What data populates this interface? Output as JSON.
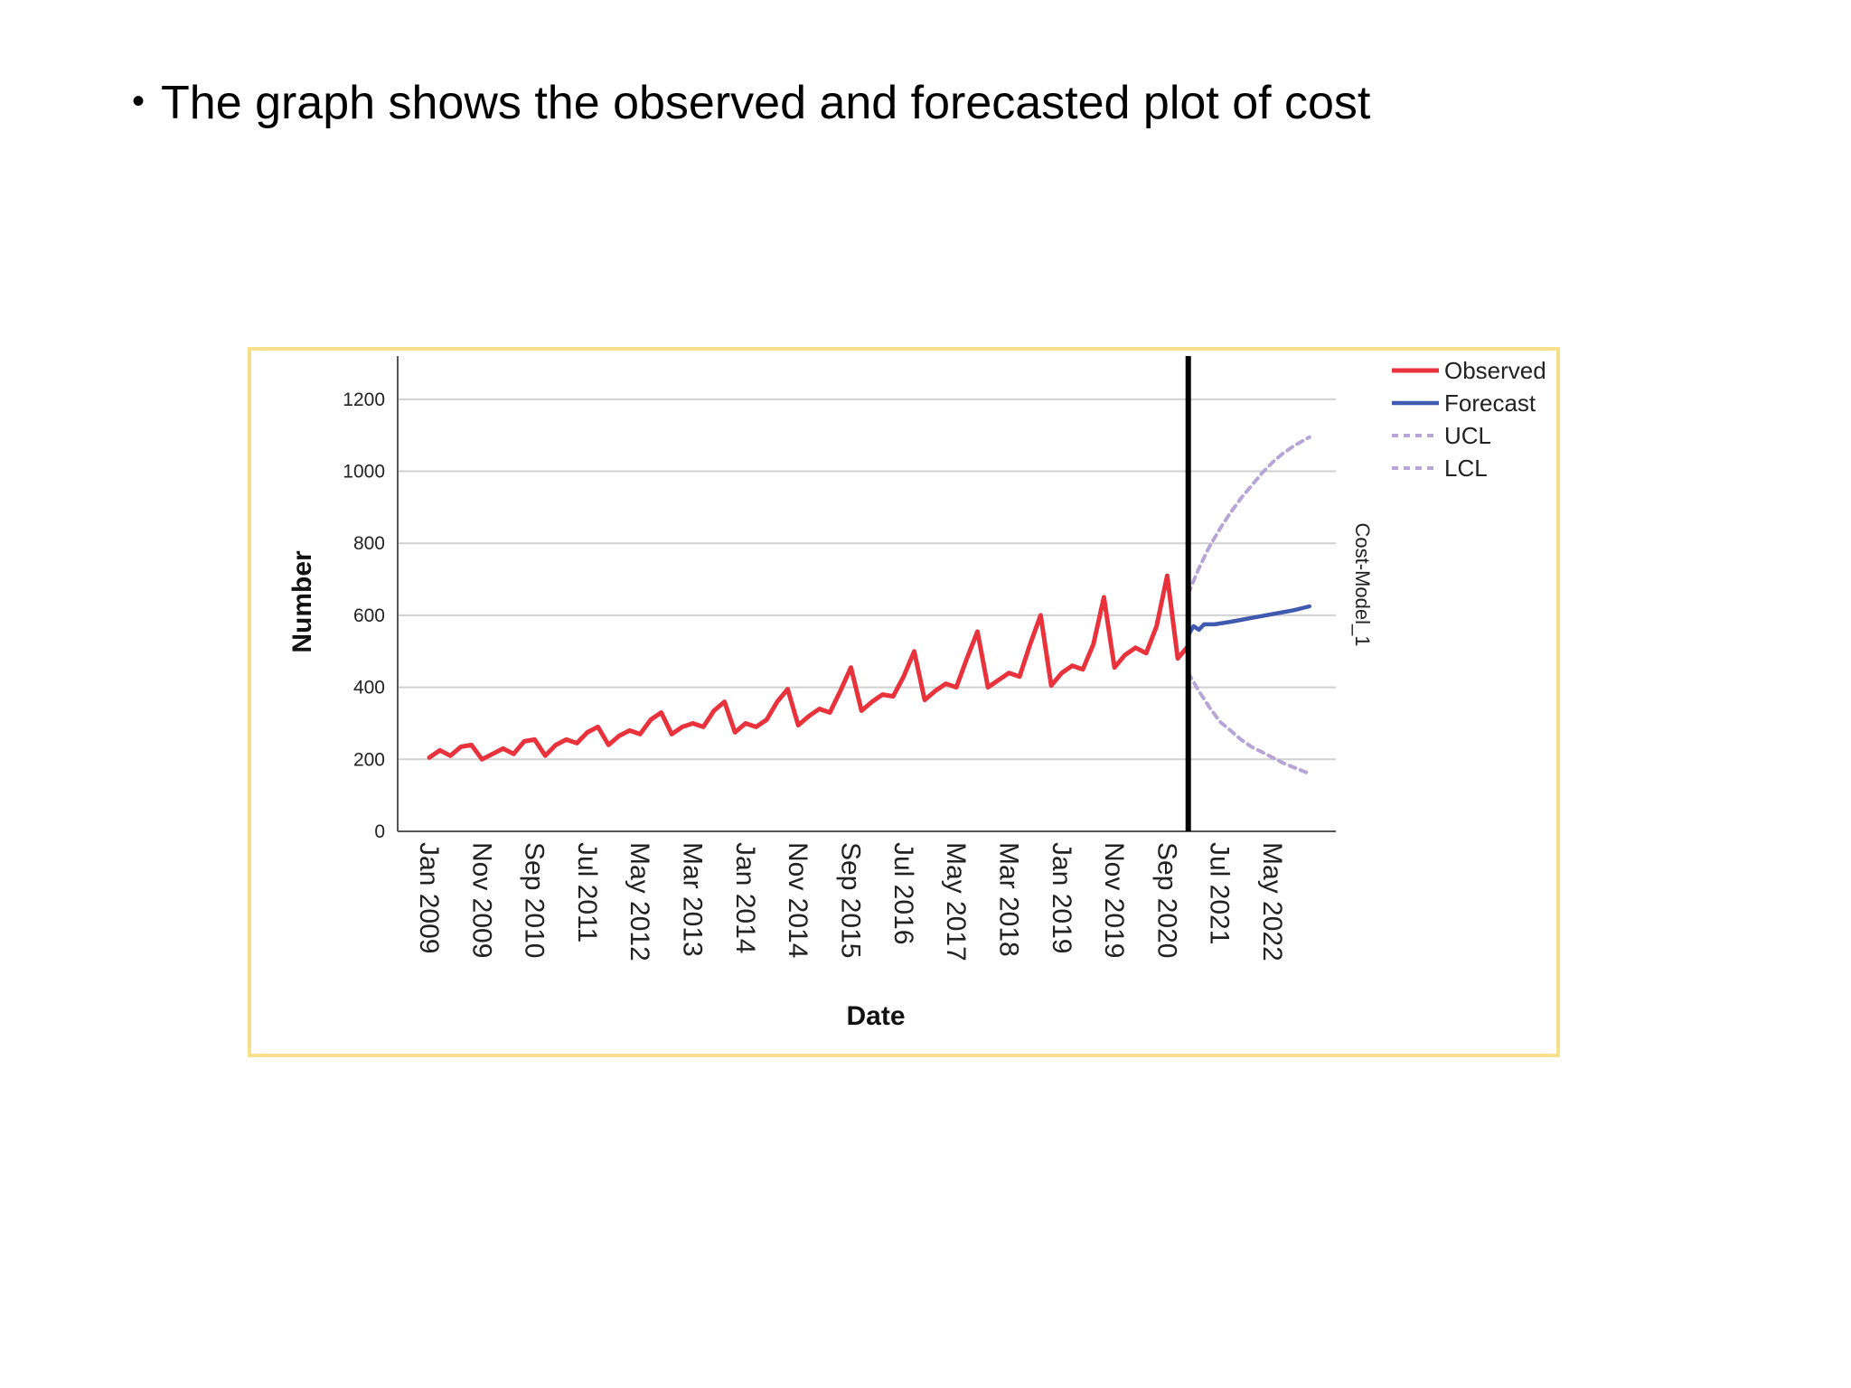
{
  "slide": {
    "bullet_text": "The graph shows the observed and forecasted plot of cost"
  },
  "chart_data": {
    "type": "line",
    "xlabel": "Date",
    "ylabel": "Number",
    "right_label": "Cost-Model_1",
    "ylim": [
      0,
      1300
    ],
    "yticks": [
      0,
      200,
      400,
      600,
      800,
      1000,
      1200
    ],
    "x_range": [
      "2008-07",
      "2023-05"
    ],
    "xtick_labels": [
      {
        "date": "2009-01",
        "label": "Jan 2009"
      },
      {
        "date": "2009-11",
        "label": "Nov 2009"
      },
      {
        "date": "2010-09",
        "label": "Sep 2010"
      },
      {
        "date": "2011-07",
        "label": "Jul 2011"
      },
      {
        "date": "2012-05",
        "label": "May 2012"
      },
      {
        "date": "2013-03",
        "label": "Mar 2013"
      },
      {
        "date": "2014-01",
        "label": "Jan 2014"
      },
      {
        "date": "2014-11",
        "label": "Nov 2014"
      },
      {
        "date": "2015-09",
        "label": "Sep 2015"
      },
      {
        "date": "2016-07",
        "label": "Jul 2016"
      },
      {
        "date": "2017-05",
        "label": "May 2017"
      },
      {
        "date": "2018-03",
        "label": "Mar 2018"
      },
      {
        "date": "2019-01",
        "label": "Jan 2019"
      },
      {
        "date": "2019-11",
        "label": "Nov 2019"
      },
      {
        "date": "2020-09",
        "label": "Sep 2020"
      },
      {
        "date": "2021-07",
        "label": "Jul 2021"
      },
      {
        "date": "2022-05",
        "label": "May 2022"
      }
    ],
    "grid": true,
    "legend_position": "top-right",
    "forecast_origin": "2021-01",
    "colors": {
      "observed": "#e8323c",
      "forecast": "#3f5ab0",
      "bounds": "#b9a4d6",
      "divider": "#000000",
      "grid": "#d0d0d0",
      "frame": "#f7e08a"
    },
    "series": [
      {
        "name": "Observed",
        "style": "solid",
        "points": [
          [
            "2009-01",
            205
          ],
          [
            "2009-03",
            225
          ],
          [
            "2009-05",
            210
          ],
          [
            "2009-07",
            235
          ],
          [
            "2009-09",
            240
          ],
          [
            "2009-11",
            200
          ],
          [
            "2010-01",
            215
          ],
          [
            "2010-03",
            230
          ],
          [
            "2010-05",
            215
          ],
          [
            "2010-07",
            250
          ],
          [
            "2010-09",
            255
          ],
          [
            "2010-11",
            210
          ],
          [
            "2011-01",
            240
          ],
          [
            "2011-03",
            255
          ],
          [
            "2011-05",
            245
          ],
          [
            "2011-07",
            275
          ],
          [
            "2011-09",
            290
          ],
          [
            "2011-11",
            240
          ],
          [
            "2012-01",
            265
          ],
          [
            "2012-03",
            280
          ],
          [
            "2012-05",
            270
          ],
          [
            "2012-07",
            310
          ],
          [
            "2012-09",
            330
          ],
          [
            "2012-11",
            270
          ],
          [
            "2013-01",
            290
          ],
          [
            "2013-03",
            300
          ],
          [
            "2013-05",
            290
          ],
          [
            "2013-07",
            335
          ],
          [
            "2013-09",
            360
          ],
          [
            "2013-11",
            275
          ],
          [
            "2014-01",
            300
          ],
          [
            "2014-03",
            290
          ],
          [
            "2014-05",
            310
          ],
          [
            "2014-07",
            360
          ],
          [
            "2014-09",
            395
          ],
          [
            "2014-11",
            295
          ],
          [
            "2015-01",
            320
          ],
          [
            "2015-03",
            340
          ],
          [
            "2015-05",
            330
          ],
          [
            "2015-07",
            390
          ],
          [
            "2015-09",
            455
          ],
          [
            "2015-11",
            335
          ],
          [
            "2016-01",
            360
          ],
          [
            "2016-03",
            380
          ],
          [
            "2016-05",
            375
          ],
          [
            "2016-07",
            430
          ],
          [
            "2016-09",
            500
          ],
          [
            "2016-11",
            365
          ],
          [
            "2017-01",
            390
          ],
          [
            "2017-03",
            410
          ],
          [
            "2017-05",
            400
          ],
          [
            "2017-07",
            480
          ],
          [
            "2017-09",
            555
          ],
          [
            "2017-11",
            400
          ],
          [
            "2018-01",
            420
          ],
          [
            "2018-03",
            440
          ],
          [
            "2018-05",
            430
          ],
          [
            "2018-07",
            520
          ],
          [
            "2018-09",
            600
          ],
          [
            "2018-11",
            405
          ],
          [
            "2019-01",
            440
          ],
          [
            "2019-03",
            460
          ],
          [
            "2019-05",
            450
          ],
          [
            "2019-07",
            520
          ],
          [
            "2019-09",
            650
          ],
          [
            "2019-11",
            455
          ],
          [
            "2020-01",
            490
          ],
          [
            "2020-03",
            510
          ],
          [
            "2020-05",
            495
          ],
          [
            "2020-07",
            570
          ],
          [
            "2020-09",
            710
          ],
          [
            "2020-11",
            480
          ],
          [
            "2021-01",
            515
          ]
        ]
      },
      {
        "name": "Forecast",
        "style": "solid",
        "points": [
          [
            "2021-01",
            545
          ],
          [
            "2021-02",
            570
          ],
          [
            "2021-03",
            560
          ],
          [
            "2021-04",
            575
          ],
          [
            "2021-06",
            575
          ],
          [
            "2021-09",
            582
          ],
          [
            "2021-12",
            590
          ],
          [
            "2022-03",
            598
          ],
          [
            "2022-06",
            606
          ],
          [
            "2022-09",
            614
          ],
          [
            "2022-12",
            625
          ]
        ]
      },
      {
        "name": "UCL",
        "style": "dashed",
        "points": [
          [
            "2021-01",
            660
          ],
          [
            "2021-03",
            730
          ],
          [
            "2021-05",
            790
          ],
          [
            "2021-07",
            840
          ],
          [
            "2021-09",
            885
          ],
          [
            "2021-11",
            925
          ],
          [
            "2022-01",
            960
          ],
          [
            "2022-03",
            995
          ],
          [
            "2022-05",
            1025
          ],
          [
            "2022-07",
            1050
          ],
          [
            "2022-09",
            1070
          ],
          [
            "2022-12",
            1095
          ]
        ]
      },
      {
        "name": "LCL",
        "style": "dashed",
        "points": [
          [
            "2021-01",
            440
          ],
          [
            "2021-03",
            390
          ],
          [
            "2021-05",
            345
          ],
          [
            "2021-07",
            305
          ],
          [
            "2021-09",
            280
          ],
          [
            "2021-11",
            255
          ],
          [
            "2022-01",
            235
          ],
          [
            "2022-03",
            220
          ],
          [
            "2022-05",
            205
          ],
          [
            "2022-07",
            190
          ],
          [
            "2022-09",
            178
          ],
          [
            "2022-12",
            160
          ]
        ]
      }
    ]
  }
}
